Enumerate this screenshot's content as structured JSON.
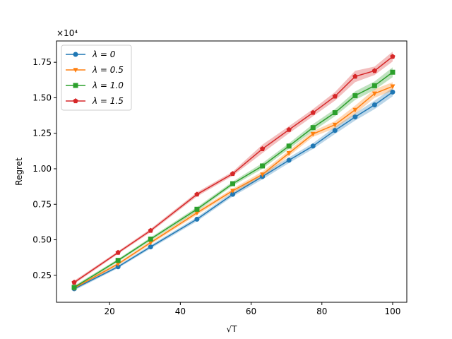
{
  "chart_data": {
    "type": "line",
    "title": "",
    "xlabel": "√T",
    "ylabel": "Regret",
    "y_offset_label": "×10⁴",
    "xlim": [
      5,
      104
    ],
    "ylim": [
      0.06,
      1.9
    ],
    "x_ticks": [
      20,
      40,
      60,
      80,
      100
    ],
    "x_tick_labels": [
      "20",
      "40",
      "60",
      "80",
      "100"
    ],
    "y_ticks": [
      0.25,
      0.5,
      0.75,
      1.0,
      1.25,
      1.5,
      1.75
    ],
    "y_tick_labels": [
      "0.25",
      "0.50",
      "0.75",
      "1.00",
      "1.25",
      "1.50",
      "1.75"
    ],
    "grid": false,
    "legend_position": "top-left",
    "x": [
      10,
      22.4,
      31.6,
      44.7,
      54.8,
      63.2,
      70.7,
      77.5,
      83.7,
      89.4,
      94.9,
      100
    ],
    "series": [
      {
        "name": "λ = 0",
        "color": "#1f77b4",
        "marker": "circle",
        "values": [
          0.155,
          0.31,
          0.45,
          0.645,
          0.82,
          0.945,
          1.06,
          1.16,
          1.27,
          1.365,
          1.45,
          1.54
        ],
        "band": [
          0.012,
          0.01,
          0.012,
          0.015,
          0.015,
          0.02,
          0.02,
          0.02,
          0.025,
          0.025,
          0.03,
          0.03
        ]
      },
      {
        "name": "λ = 0.5",
        "color": "#ff7f0e",
        "marker": "triangle-down",
        "values": [
          0.16,
          0.33,
          0.48,
          0.69,
          0.845,
          0.96,
          1.11,
          1.245,
          1.31,
          1.415,
          1.53,
          1.58
        ],
        "band": [
          0.012,
          0.01,
          0.012,
          0.015,
          0.015,
          0.02,
          0.02,
          0.02,
          0.025,
          0.03,
          0.03,
          0.03
        ]
      },
      {
        "name": "λ = 1.0",
        "color": "#2ca02c",
        "marker": "square",
        "values": [
          0.165,
          0.355,
          0.505,
          0.715,
          0.895,
          1.02,
          1.16,
          1.29,
          1.395,
          1.515,
          1.585,
          1.68
        ],
        "band": [
          0.012,
          0.01,
          0.012,
          0.015,
          0.015,
          0.02,
          0.02,
          0.025,
          0.025,
          0.03,
          0.03,
          0.035
        ]
      },
      {
        "name": "λ = 1.5",
        "color": "#d62728",
        "marker": "pentagon",
        "values": [
          0.2,
          0.41,
          0.565,
          0.82,
          0.965,
          1.14,
          1.275,
          1.395,
          1.51,
          1.65,
          1.69,
          1.79
        ],
        "band": [
          0.012,
          0.01,
          0.012,
          0.015,
          0.015,
          0.03,
          0.025,
          0.025,
          0.03,
          0.04,
          0.03,
          0.035
        ]
      }
    ]
  }
}
